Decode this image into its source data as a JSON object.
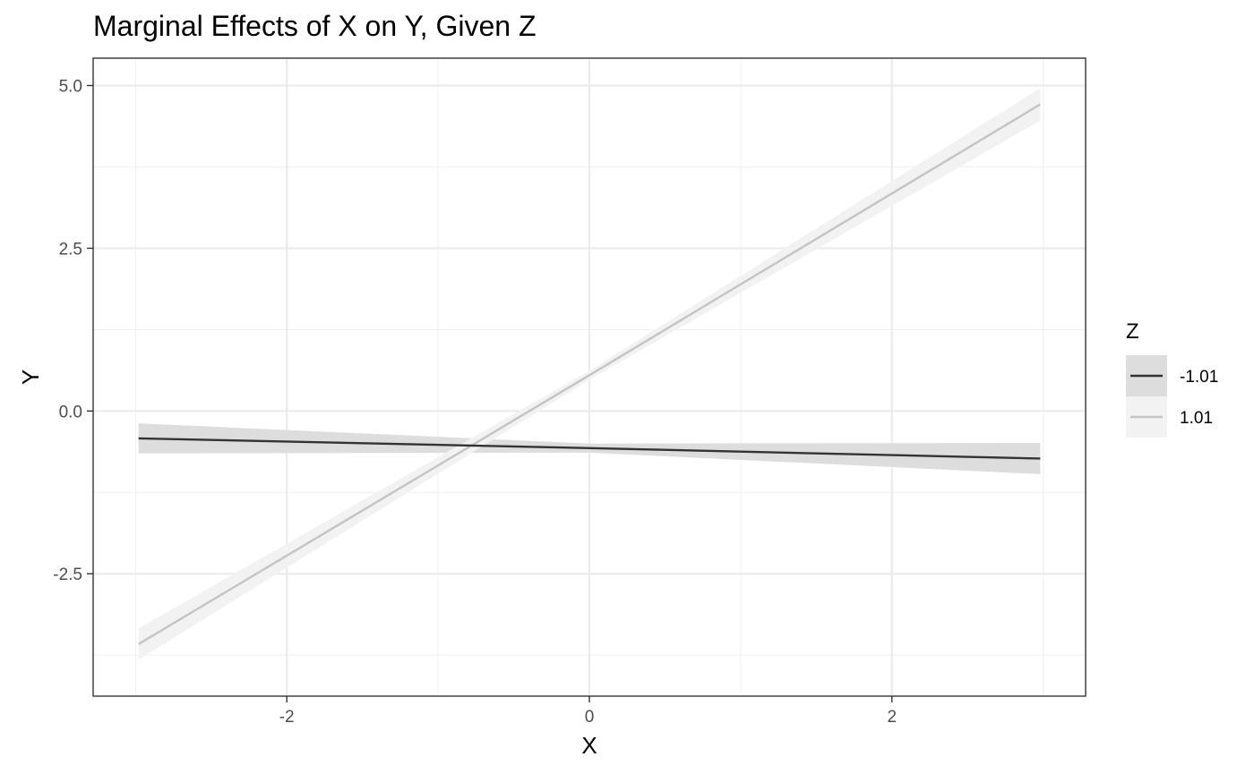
{
  "chart_data": {
    "type": "line",
    "title": "Marginal Effects of X on Y, Given Z",
    "xlabel": "X",
    "ylabel": "Y",
    "xlim": [
      -3.28,
      3.28
    ],
    "ylim": [
      -4.38,
      5.42
    ],
    "x_ticks": [
      -2,
      0,
      2
    ],
    "x_tick_labels": [
      "-2",
      "0",
      "2"
    ],
    "y_ticks": [
      -2.5,
      0,
      2.5,
      5
    ],
    "y_tick_labels": [
      "-2.5",
      "0.0",
      "2.5",
      "5.0"
    ],
    "grid": true,
    "legend": {
      "title": "Z",
      "placement": "right"
    },
    "series": [
      {
        "name": "-1.01",
        "color": "#333333",
        "band_color": "#dddddd",
        "x": [
          -2.98,
          0,
          2.98
        ],
        "y": [
          -0.42,
          -0.57,
          -0.73
        ],
        "lower": [
          -0.65,
          -0.64,
          -0.97
        ],
        "upper": [
          -0.19,
          -0.5,
          -0.49
        ]
      },
      {
        "name": "1.01",
        "color": "#c4c4c4",
        "band_color": "#f2f2f2",
        "x": [
          -2.98,
          0,
          2.98
        ],
        "y": [
          -3.58,
          0.55,
          4.71
        ],
        "lower": [
          -3.82,
          0.48,
          4.46
        ],
        "upper": [
          -3.34,
          0.62,
          4.96
        ]
      }
    ]
  }
}
